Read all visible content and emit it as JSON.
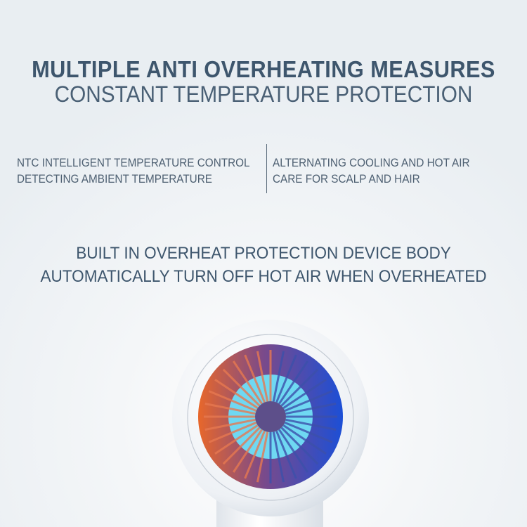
{
  "headline": {
    "title": "MULTIPLE ANTI OVERHEATING MEASURES",
    "subtitle": "CONSTANT TEMPERATURE PROTECTION"
  },
  "features": {
    "left": {
      "line1": "NTC INTELLIGENT TEMPERATURE CONTROL",
      "line2": "DETECTING AMBIENT TEMPERATURE"
    },
    "right": {
      "line1": "ALTERNATING COOLING AND HOT AIR",
      "line2": "CARE FOR SCALP AND HAIR"
    }
  },
  "body": {
    "line1": "BUILT IN OVERHEAT PROTECTION DEVICE BODY",
    "line2": "AUTOMATICALLY TURN OFF HOT AIR WHEN OVERHEATED"
  },
  "colors": {
    "text": "#3e566d",
    "hot": "#e0642a",
    "cold": "#1f4fd0",
    "fan": "#6fd8f2"
  },
  "image": {
    "subject": "hair-dryer-fan"
  }
}
